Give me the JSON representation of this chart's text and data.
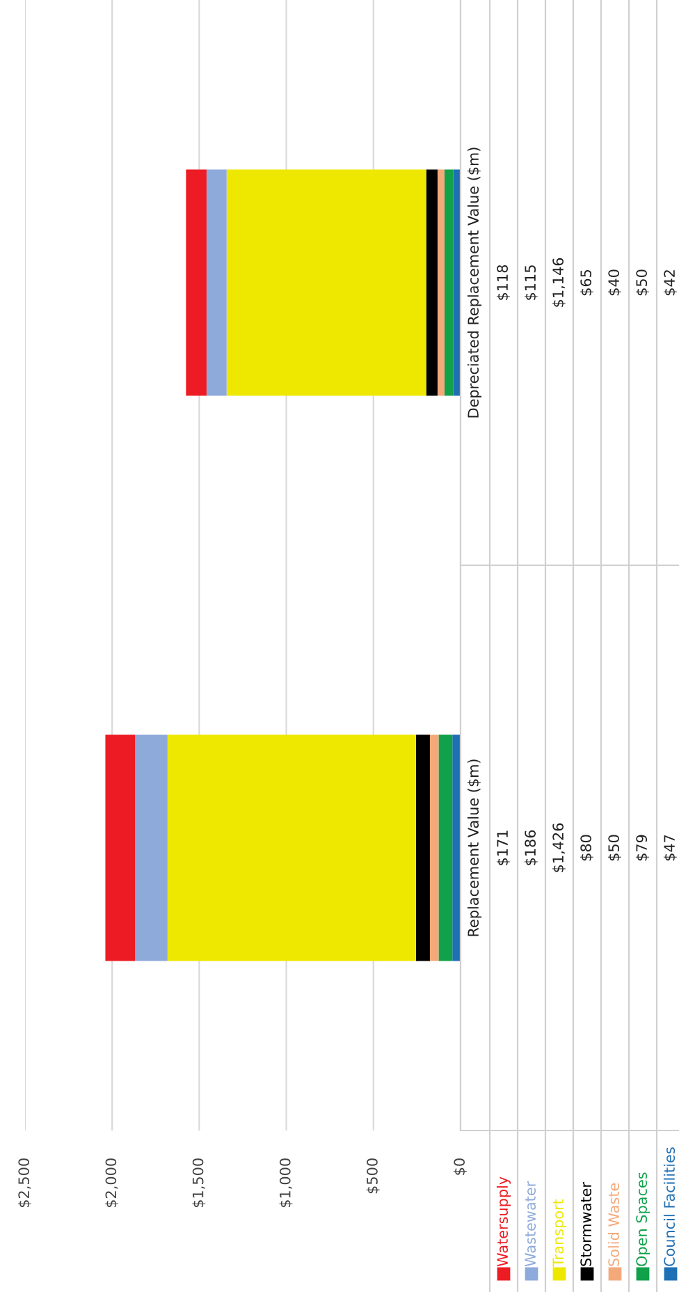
{
  "chart_data": {
    "type": "bar",
    "orientation": "horizontal",
    "stacked": true,
    "categories": [
      "Depreciated Replacement Value ($m)",
      "Replacement Value ($m)"
    ],
    "series": [
      {
        "name": "Council Facilities",
        "color": "#1f6fb4",
        "values": [
          42,
          47
        ],
        "value_labels": [
          "$42",
          "$47"
        ]
      },
      {
        "name": "Open Spaces",
        "color": "#10a14a",
        "values": [
          50,
          79
        ],
        "value_labels": [
          "$50",
          "$79"
        ]
      },
      {
        "name": "Solid Waste",
        "color": "#f4a97a",
        "values": [
          40,
          50
        ],
        "value_labels": [
          "$40",
          "$50"
        ]
      },
      {
        "name": "Stormwater",
        "color": "#000000",
        "values": [
          65,
          80
        ],
        "value_labels": [
          "$65",
          "$80"
        ]
      },
      {
        "name": "Transport",
        "color": "#eee800",
        "values": [
          1146,
          1426
        ],
        "value_labels": [
          "$1,146",
          "$1,426"
        ]
      },
      {
        "name": "Wastewater",
        "color": "#8eaadb",
        "values": [
          115,
          186
        ],
        "value_labels": [
          "$115",
          "$186"
        ]
      },
      {
        "name": "Watersupply",
        "color": "#ed1c24",
        "values": [
          118,
          171
        ],
        "value_labels": [
          "$118",
          "$171"
        ]
      }
    ],
    "xlim": [
      2500,
      0
    ],
    "xticks": [
      {
        "value": 2500,
        "label": "$2,500"
      },
      {
        "value": 2000,
        "label": "$2,000"
      },
      {
        "value": 1500,
        "label": "$1,500"
      },
      {
        "value": 1000,
        "label": "$1,000"
      },
      {
        "value": 500,
        "label": "$500"
      },
      {
        "value": 0,
        "label": "$0"
      }
    ],
    "grid": "x",
    "legend": "bottom"
  }
}
